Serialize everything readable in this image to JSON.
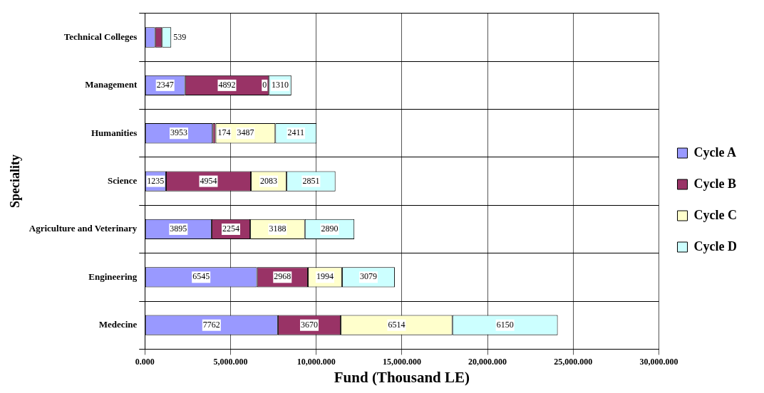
{
  "chart_data": {
    "type": "bar",
    "orientation": "horizontal",
    "stacked": true,
    "xlabel": "Fund (Thousand LE)",
    "ylabel": "Speciality",
    "categories": [
      "Technical Colleges",
      "Management",
      "Humanities",
      "Science",
      "Agriculture and Veterinary",
      "Engineering",
      "Medecine"
    ],
    "series": [
      {
        "name": "Cycle A",
        "color": "#9999ff",
        "values": [
          600,
          2347,
          3953,
          1235,
          3895,
          6545,
          7762
        ],
        "value_labels": [
          null,
          "2347",
          "3953",
          "1235",
          "3895",
          "6545",
          "7762"
        ]
      },
      {
        "name": "Cycle B",
        "color": "#993366",
        "values": [
          400,
          4892,
          174,
          4954,
          2254,
          2968,
          3670
        ],
        "value_labels": [
          null,
          "4892",
          "174",
          "4954",
          "2254",
          "2968",
          "3670"
        ]
      },
      {
        "name": "Cycle C",
        "color": "#ffffcc",
        "values": [
          0,
          0,
          3487,
          2083,
          3188,
          1994,
          6514
        ],
        "value_labels": [
          null,
          "0",
          "3487",
          "2083",
          "3188",
          "1994",
          "6514"
        ]
      },
      {
        "name": "Cycle D",
        "color": "#ccffff",
        "values": [
          539,
          1310,
          2411,
          2851,
          2890,
          3079,
          6150
        ],
        "value_labels": [
          "539",
          "1310",
          "2411",
          "2851",
          "2890",
          "3079",
          "6150"
        ]
      }
    ],
    "xlim": [
      0,
      30000
    ],
    "xticks": [
      {
        "value": 0,
        "label": "0.000"
      },
      {
        "value": 5000,
        "label": "5,000.000"
      },
      {
        "value": 10000,
        "label": "10,000.000"
      },
      {
        "value": 15000,
        "label": "15,000.000"
      },
      {
        "value": 20000,
        "label": "20,000.000"
      },
      {
        "value": 25000,
        "label": "25,000.000"
      },
      {
        "value": 30000,
        "label": "30,000.000"
      }
    ],
    "grid": true,
    "legend": "right"
  }
}
